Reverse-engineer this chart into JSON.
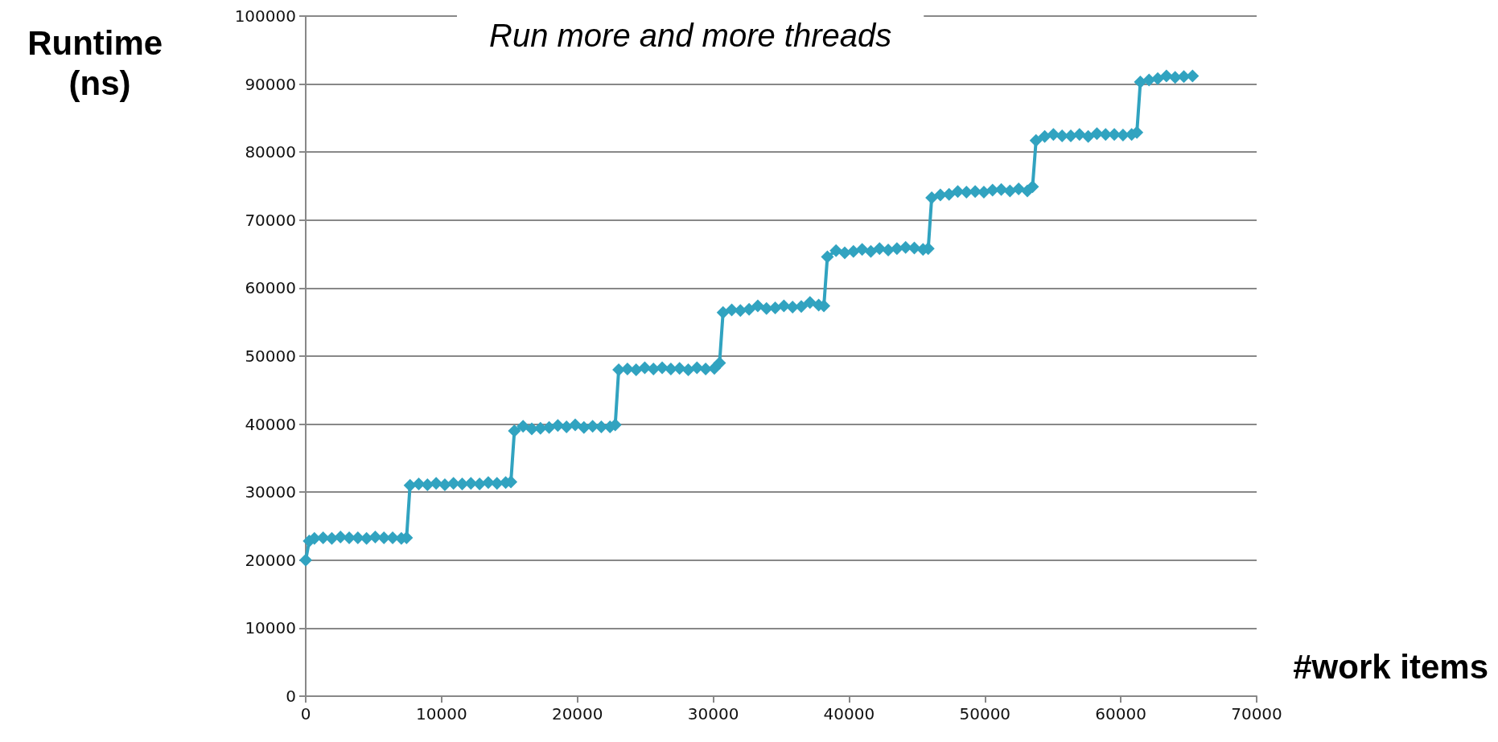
{
  "chart_data": {
    "type": "line",
    "title": "Run more and more threads",
    "xlabel": "#work items",
    "ylabel": "Runtime (ns)",
    "xlim": [
      0,
      70000
    ],
    "xticks": [
      0,
      10000,
      20000,
      30000,
      40000,
      50000,
      60000,
      70000
    ],
    "ylim": [
      0,
      100000
    ],
    "yticks": [
      0,
      10000,
      20000,
      30000,
      40000,
      50000,
      60000,
      70000,
      80000,
      90000,
      100000
    ],
    "grid": "y",
    "marker": "diamond",
    "line_style": "solid",
    "series": [
      {
        "color": "#31a3c0",
        "x": [
          0,
          256,
          640,
          1280,
          1920,
          2560,
          3200,
          3840,
          4480,
          5120,
          5760,
          6400,
          7040,
          7424,
          7680,
          8320,
          8960,
          9600,
          10240,
          10880,
          11520,
          12160,
          12800,
          13440,
          14080,
          14720,
          15104,
          15360,
          16000,
          16640,
          17280,
          17920,
          18560,
          19200,
          19840,
          20480,
          21120,
          21760,
          22400,
          22784,
          23040,
          23680,
          24320,
          24960,
          25600,
          26240,
          26880,
          27520,
          28160,
          28800,
          29440,
          30080,
          30464,
          30720,
          31360,
          32000,
          32640,
          33280,
          33920,
          34560,
          35200,
          35840,
          36480,
          37120,
          37760,
          38144,
          38400,
          39040,
          39680,
          40320,
          40960,
          41600,
          42240,
          42880,
          43520,
          44160,
          44800,
          45440,
          45824,
          46080,
          46720,
          47360,
          48000,
          48640,
          49280,
          49920,
          50560,
          51200,
          51840,
          52480,
          53120,
          53504,
          53760,
          54400,
          55040,
          55680,
          56320,
          56960,
          57600,
          58240,
          58880,
          59520,
          60160,
          60800,
          61184,
          61440,
          62080,
          62720,
          63360,
          64000,
          64640,
          65280
        ],
        "values": [
          20000,
          22800,
          23200,
          23300,
          23200,
          23400,
          23300,
          23300,
          23200,
          23400,
          23300,
          23300,
          23200,
          23300,
          31000,
          31200,
          31100,
          31300,
          31100,
          31300,
          31200,
          31300,
          31200,
          31400,
          31300,
          31400,
          31500,
          39000,
          39700,
          39300,
          39400,
          39500,
          39800,
          39600,
          39900,
          39500,
          39700,
          39600,
          39600,
          39900,
          48000,
          48100,
          48000,
          48300,
          48100,
          48300,
          48100,
          48200,
          48000,
          48300,
          48100,
          48200,
          49000,
          56400,
          56800,
          56700,
          56900,
          57400,
          57000,
          57100,
          57400,
          57200,
          57300,
          57900,
          57500,
          57400,
          64600,
          65500,
          65200,
          65400,
          65700,
          65400,
          65800,
          65600,
          65800,
          66000,
          65900,
          65700,
          65800,
          73300,
          73700,
          73800,
          74200,
          74100,
          74200,
          74100,
          74400,
          74500,
          74300,
          74600,
          74300,
          74900,
          81700,
          82300,
          82600,
          82400,
          82400,
          82600,
          82300,
          82700,
          82600,
          82600,
          82500,
          82600,
          82900,
          90300,
          90600,
          90800,
          91200,
          91000,
          91100,
          91200
        ]
      }
    ]
  }
}
